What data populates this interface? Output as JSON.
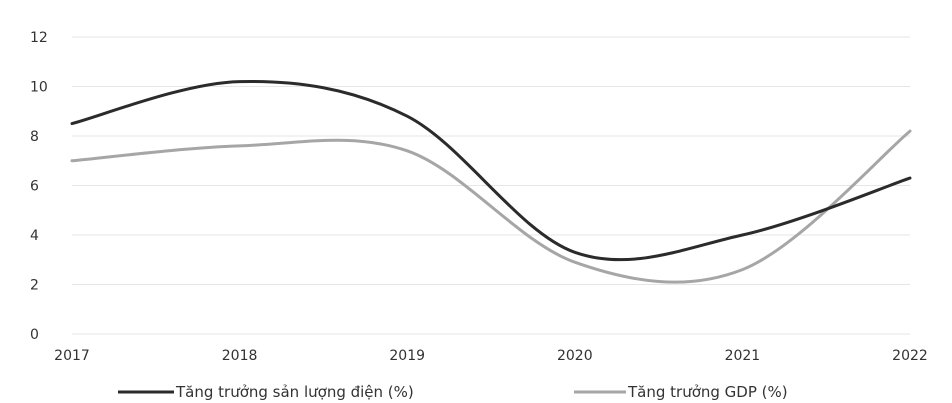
{
  "chart_data": {
    "type": "line",
    "x": [
      "2017",
      "2018",
      "2019",
      "2020",
      "2021",
      "2022"
    ],
    "series": [
      {
        "name": "Tăng trưởng sản lượng điện (%)",
        "values": [
          8.5,
          10.2,
          8.8,
          3.3,
          4.0,
          6.3
        ],
        "color": "#2b2b2b"
      },
      {
        "name": "Tăng trưởng GDP (%)",
        "values": [
          7.0,
          7.6,
          7.4,
          2.9,
          2.6,
          8.2
        ],
        "color": "#a6a6a6"
      }
    ],
    "ylim": [
      0,
      12
    ],
    "yticks": [
      "0",
      "2",
      "4",
      "6",
      "8",
      "10",
      "12"
    ],
    "grid": true,
    "legend_position": "bottom"
  }
}
